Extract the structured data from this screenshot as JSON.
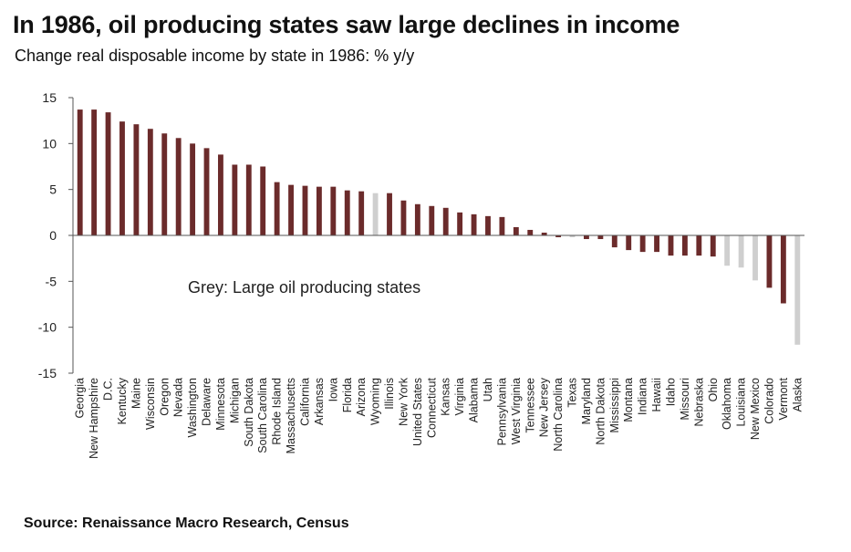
{
  "title": "In 1986, oil producing states saw large declines in income",
  "subtitle": "Change real disposable income by state in 1986:  % y/y",
  "source": "Source: Renaissance Macro Research, Census",
  "colors": {
    "normal": "#6b2b2b",
    "oil": "#cfcfcf",
    "axis": "#555555"
  },
  "chart_data": {
    "type": "bar",
    "title": "In 1986, oil producing states saw large declines in income",
    "ylabel": "% y/y",
    "xlabel": "",
    "ylim": [
      -15,
      15
    ],
    "yticks": [
      15,
      10,
      5,
      0,
      -5,
      -10,
      -15
    ],
    "annotation": "Grey: Large oil producing states",
    "categories": [
      "Georgia",
      "New Hampshire",
      "D.C.",
      "Kentucky",
      "Maine",
      "Wisconsin",
      "Oregon",
      "Nevada",
      "Washington",
      "Delaware",
      "Minnesota",
      "Michigan",
      "South Dakota",
      "South Carolina",
      "Rhode Island",
      "Massachusetts",
      "California",
      "Arkansas",
      "Iowa",
      "Florida",
      "Arizona",
      "Wyoming",
      "Illinois",
      "New York",
      "United States",
      "Connecticut",
      "Kansas",
      "Virginia",
      "Alabama",
      "Utah",
      "Pennsylvania",
      "West Virginia",
      "Tennessee",
      "New Jersey",
      "North Carolina",
      "Texas",
      "Maryland",
      "North Dakota",
      "Mississippi",
      "Montana",
      "Indiana",
      "Hawaii",
      "Idaho",
      "Missouri",
      "Nebraska",
      "Ohio",
      "Oklahoma",
      "Louisiana",
      "New Mexico",
      "Colorado",
      "Vermont",
      "Alaska"
    ],
    "values": [
      13.7,
      13.7,
      13.4,
      12.4,
      12.1,
      11.6,
      11.1,
      10.6,
      10.0,
      9.5,
      8.8,
      7.7,
      7.7,
      7.5,
      5.8,
      5.5,
      5.4,
      5.3,
      5.3,
      4.9,
      4.8,
      4.6,
      4.6,
      3.8,
      3.4,
      3.2,
      3.0,
      2.5,
      2.3,
      2.1,
      2.0,
      0.9,
      0.6,
      0.3,
      -0.2,
      -0.2,
      -0.4,
      -0.4,
      -1.3,
      -1.6,
      -1.8,
      -1.8,
      -2.2,
      -2.2,
      -2.2,
      -2.3,
      -3.3,
      -3.5,
      -4.9,
      -5.7,
      -7.4,
      -11.9
    ],
    "oil_states": [
      "Wyoming",
      "Texas",
      "Oklahoma",
      "Louisiana",
      "New Mexico",
      "Alaska"
    ]
  }
}
